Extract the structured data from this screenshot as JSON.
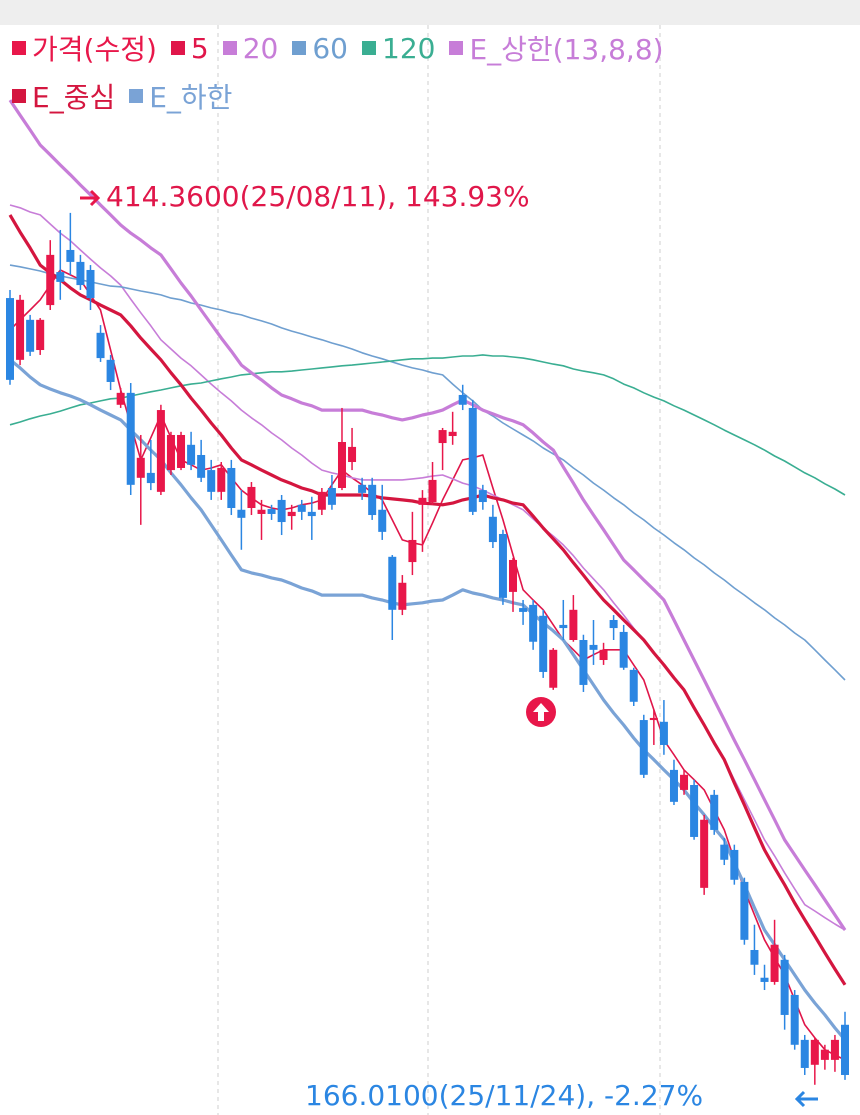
{
  "chart_data": {
    "type": "candlestick",
    "name": "가격(수정)",
    "up_color": "#e8174a",
    "down_color": "#2b86e2",
    "ylim": [
      157.4,
      475.0
    ],
    "annotations": [
      "414.3600(25/08/11), 143.93%",
      "166.0100(25/11/24), -2.27%"
    ],
    "ohlc": [
      [
        390.1,
        392.4,
        365.4,
        366.8
      ],
      [
        372.5,
        391.0,
        371.0,
        389.6
      ],
      [
        383.9,
        385.3,
        373.6,
        374.8
      ],
      [
        375.3,
        384.4,
        373.9,
        383.9
      ],
      [
        388.1,
        406.6,
        386.7,
        402.4
      ],
      [
        397.5,
        409.5,
        389.6,
        394.7
      ],
      [
        403.8,
        414.36,
        396.7,
        400.4
      ],
      [
        400.4,
        402.4,
        392.4,
        393.8
      ],
      [
        398.1,
        399.5,
        386.7,
        390.1
      ],
      [
        380.2,
        382.4,
        371.9,
        373.0
      ],
      [
        372.5,
        373.9,
        363.9,
        366.2
      ],
      [
        359.7,
        364.5,
        358.8,
        363.1
      ],
      [
        363.1,
        365.9,
        334.0,
        336.9
      ],
      [
        338.9,
        351.1,
        325.5,
        344.6
      ],
      [
        340.3,
        349.7,
        335.4,
        337.4
      ],
      [
        334.9,
        359.7,
        334.0,
        358.2
      ],
      [
        341.1,
        352.0,
        339.7,
        351.1
      ],
      [
        341.7,
        352.0,
        341.1,
        351.1
      ],
      [
        348.3,
        352.0,
        341.1,
        342.6
      ],
      [
        345.4,
        349.7,
        337.7,
        338.9
      ],
      [
        341.1,
        344.0,
        332.6,
        334.9
      ],
      [
        334.9,
        343.4,
        332.6,
        341.7
      ],
      [
        341.7,
        344.0,
        328.3,
        330.3
      ],
      [
        329.8,
        335.4,
        318.4,
        327.5
      ],
      [
        330.3,
        337.7,
        328.3,
        336.3
      ],
      [
        328.6,
        332.6,
        321.2,
        329.8
      ],
      [
        330.0,
        331.2,
        326.9,
        328.6
      ],
      [
        332.6,
        334.0,
        322.6,
        326.3
      ],
      [
        328.0,
        331.2,
        324.1,
        329.2
      ],
      [
        331.2,
        332.6,
        326.9,
        329.2
      ],
      [
        329.2,
        333.5,
        321.2,
        328.0
      ],
      [
        329.8,
        336.0,
        328.3,
        334.9
      ],
      [
        336.0,
        339.7,
        329.8,
        331.2
      ],
      [
        336.0,
        358.8,
        335.4,
        349.1
      ],
      [
        343.4,
        353.1,
        341.1,
        347.7
      ],
      [
        336.9,
        338.9,
        332.6,
        334.6
      ],
      [
        336.9,
        338.9,
        326.9,
        328.3
      ],
      [
        329.8,
        336.9,
        321.2,
        323.5
      ],
      [
        316.4,
        316.9,
        292.7,
        301.3
      ],
      [
        301.3,
        311.2,
        299.8,
        309.0
      ],
      [
        314.9,
        329.2,
        311.2,
        321.2
      ],
      [
        331.2,
        335.4,
        317.8,
        333.2
      ],
      [
        332.0,
        343.4,
        331.2,
        338.3
      ],
      [
        348.8,
        353.1,
        341.1,
        352.5
      ],
      [
        350.8,
        357.7,
        348.3,
        352.0
      ],
      [
        362.5,
        365.4,
        358.2,
        359.7
      ],
      [
        358.8,
        361.1,
        328.3,
        329.2
      ],
      [
        335.4,
        336.9,
        329.8,
        332.0
      ],
      [
        327.8,
        331.2,
        318.9,
        320.6
      ],
      [
        322.9,
        324.1,
        302.7,
        304.7
      ],
      [
        306.4,
        316.1,
        300.7,
        315.5
      ],
      [
        301.8,
        304.1,
        297.0,
        300.7
      ],
      [
        302.7,
        304.1,
        289.9,
        292.2
      ],
      [
        299.6,
        301.3,
        281.9,
        283.6
      ],
      [
        279.1,
        290.4,
        278.5,
        289.9
      ],
      [
        297.0,
        304.1,
        292.7,
        296.1
      ],
      [
        292.7,
        305.5,
        292.2,
        301.3
      ],
      [
        292.7,
        294.2,
        277.9,
        279.9
      ],
      [
        291.3,
        298.4,
        285.6,
        289.9
      ],
      [
        287.0,
        291.9,
        285.6,
        289.9
      ],
      [
        298.4,
        299.8,
        292.7,
        296.1
      ],
      [
        295.0,
        297.0,
        284.2,
        284.8
      ],
      [
        284.2,
        284.8,
        273.9,
        275.1
      ],
      [
        269.9,
        271.4,
        253.4,
        254.3
      ],
      [
        269.9,
        272.8,
        262.8,
        270.5
      ],
      [
        269.4,
        275.6,
        260.0,
        262.8
      ],
      [
        255.7,
        258.6,
        245.7,
        246.6
      ],
      [
        250.0,
        255.7,
        248.6,
        254.3
      ],
      [
        251.4,
        252.9,
        235.8,
        236.6
      ],
      [
        222.1,
        242.9,
        220.1,
        241.5
      ],
      [
        248.6,
        250.0,
        237.2,
        238.6
      ],
      [
        234.4,
        236.3,
        228.6,
        230.1
      ],
      [
        232.9,
        234.4,
        223.0,
        224.4
      ],
      [
        223.8,
        225.0,
        205.9,
        207.3
      ],
      [
        204.4,
        211.6,
        197.3,
        200.2
      ],
      [
        196.5,
        200.2,
        193.0,
        195.3
      ],
      [
        195.3,
        213.0,
        194.5,
        205.9
      ],
      [
        201.6,
        203.0,
        181.7,
        185.9
      ],
      [
        191.6,
        193.0,
        176.0,
        177.4
      ],
      [
        178.8,
        180.2,
        168.8,
        170.8
      ],
      [
        171.7,
        179.4,
        166.01,
        178.8
      ],
      [
        173.1,
        177.4,
        170.3,
        176.0
      ],
      [
        173.1,
        180.2,
        169.7,
        178.8
      ],
      [
        183.1,
        186.8,
        167.4,
        168.8
      ]
    ],
    "series": [
      {
        "name": "5",
        "color": "#e0164a",
        "values": [
          381.0,
          383.9,
          386.7,
          389.6,
          393.8,
          398.1,
          396.7,
          395.3,
          391.0,
          386.7,
          375.3,
          363.9,
          354.0,
          344.0,
          350.3,
          356.8,
          350.3,
          344.0,
          342.6,
          341.1,
          341.7,
          342.6,
          338.9,
          335.4,
          333.2,
          331.2,
          330.3,
          329.8,
          330.3,
          331.2,
          331.7,
          332.6,
          336.9,
          341.1,
          338.9,
          336.9,
          334.6,
          332.6,
          326.9,
          321.2,
          320.4,
          319.8,
          326.0,
          332.6,
          338.3,
          344.0,
          344.6,
          345.4,
          336.0,
          326.9,
          316.9,
          307.0,
          304.1,
          301.3,
          297.0,
          292.7,
          289.9,
          287.0,
          288.5,
          289.9,
          289.9,
          289.9,
          285.6,
          281.3,
          272.8,
          264.2,
          260.0,
          255.7,
          252.9,
          250.0,
          244.3,
          238.6,
          230.1,
          221.5,
          214.4,
          207.3,
          202.2,
          197.3,
          190.2,
          183.1,
          179.4,
          176.0,
          174.5,
          173.1
        ]
      },
      {
        "name": "20",
        "color": "#c77dd8",
        "values": [
          416.6,
          415.8,
          414.6,
          413.8,
          411.2,
          408.6,
          406.4,
          403.8,
          401.2,
          398.7,
          396.4,
          393.8,
          389.8,
          385.9,
          382.2,
          378.2,
          375.6,
          373.0,
          370.8,
          368.2,
          365.6,
          363.1,
          360.8,
          358.2,
          356.0,
          354.0,
          351.7,
          349.7,
          347.4,
          345.4,
          343.1,
          341.1,
          340.3,
          339.7,
          338.9,
          338.3,
          338.3,
          338.3,
          338.3,
          338.3,
          338.6,
          338.9,
          339.4,
          339.7,
          338.6,
          337.4,
          336.6,
          335.4,
          334.0,
          332.6,
          331.2,
          329.8,
          327.2,
          324.6,
          322.3,
          319.8,
          316.7,
          313.2,
          310.1,
          307.0,
          303.3,
          299.8,
          296.1,
          292.7,
          289.0,
          285.6,
          281.9,
          278.5,
          273.4,
          268.5,
          263.4,
          258.6,
          252.9,
          247.2,
          241.5,
          235.8,
          231.2,
          226.4,
          221.8,
          217.3,
          215.5,
          213.6,
          211.8,
          210.1
        ]
      },
      {
        "name": "60",
        "color": "#6f9fd0",
        "values": [
          399.5,
          399.0,
          398.4,
          397.8,
          397.0,
          396.4,
          395.8,
          395.3,
          394.7,
          394.1,
          393.5,
          393.3,
          392.7,
          392.1,
          391.6,
          391.0,
          390.1,
          389.6,
          388.7,
          388.1,
          387.3,
          386.7,
          385.9,
          385.3,
          384.4,
          383.6,
          382.7,
          381.6,
          380.7,
          379.9,
          379.0,
          378.2,
          377.3,
          376.5,
          375.6,
          374.5,
          373.6,
          372.8,
          371.9,
          371.0,
          370.2,
          369.6,
          368.8,
          368.2,
          365.6,
          363.1,
          360.8,
          358.2,
          356.5,
          354.5,
          352.8,
          351.1,
          349.4,
          347.4,
          345.7,
          344.0,
          341.7,
          339.7,
          337.4,
          335.4,
          333.2,
          331.2,
          328.9,
          326.9,
          324.6,
          322.6,
          320.4,
          318.4,
          316.1,
          314.1,
          311.8,
          309.8,
          307.5,
          305.5,
          303.3,
          301.3,
          299.0,
          297.0,
          294.7,
          292.7,
          289.9,
          287.0,
          284.2,
          281.3
        ]
      },
      {
        "name": "120",
        "color": "#3aae92",
        "values": [
          354.0,
          354.8,
          355.7,
          356.5,
          357.1,
          357.9,
          358.8,
          359.7,
          360.2,
          360.8,
          361.4,
          361.6,
          362.2,
          362.8,
          363.4,
          363.9,
          364.5,
          365.1,
          365.6,
          365.9,
          366.5,
          367.1,
          367.6,
          368.2,
          368.5,
          368.8,
          369.1,
          369.1,
          369.3,
          369.6,
          369.9,
          370.2,
          370.5,
          370.8,
          371.0,
          371.3,
          371.6,
          371.9,
          372.2,
          372.5,
          372.8,
          372.8,
          373.0,
          373.0,
          373.3,
          373.6,
          373.6,
          373.9,
          373.6,
          373.6,
          373.3,
          373.0,
          372.5,
          371.9,
          371.3,
          370.8,
          369.9,
          369.3,
          368.8,
          368.2,
          367.1,
          365.6,
          364.5,
          363.1,
          361.9,
          360.8,
          359.4,
          358.2,
          356.8,
          355.4,
          354.0,
          352.5,
          351.1,
          349.7,
          348.3,
          346.8,
          345.1,
          343.7,
          342.0,
          340.3,
          338.9,
          337.2,
          335.7,
          334.0
        ]
      },
      {
        "name": "E_상한(13,8,8)",
        "color": "#c77dd8",
        "values": [
          446.5,
          442.2,
          438.0,
          433.7,
          430.9,
          428.0,
          425.2,
          422.3,
          419.5,
          416.6,
          413.8,
          410.9,
          408.6,
          406.6,
          404.4,
          402.4,
          398.4,
          394.4,
          390.7,
          386.7,
          382.7,
          378.7,
          375.0,
          371.0,
          368.8,
          366.8,
          364.5,
          362.5,
          361.4,
          360.2,
          359.4,
          358.2,
          358.2,
          358.2,
          358.2,
          358.2,
          357.4,
          356.8,
          356.0,
          355.4,
          356.0,
          356.8,
          357.4,
          358.2,
          359.7,
          361.1,
          359.7,
          358.2,
          357.1,
          356.0,
          355.1,
          354.0,
          351.7,
          349.1,
          346.8,
          342.0,
          337.4,
          332.6,
          328.3,
          324.1,
          319.8,
          315.5,
          312.7,
          309.8,
          307.0,
          304.1,
          298.4,
          292.7,
          287.0,
          281.3,
          275.6,
          269.9,
          264.2,
          258.6,
          252.9,
          247.2,
          241.5,
          235.8,
          231.5,
          227.2,
          223.0,
          218.7,
          214.4,
          210.1
        ]
      },
      {
        "name": "E_중심",
        "color": "#d4163f",
        "values": [
          413.8,
          408.9,
          404.4,
          399.5,
          397.3,
          395.3,
          393.0,
          391.0,
          389.6,
          388.1,
          386.7,
          385.3,
          382.2,
          378.7,
          375.6,
          372.5,
          368.8,
          365.4,
          361.6,
          358.2,
          354.5,
          351.1,
          347.4,
          344.0,
          342.6,
          341.1,
          339.7,
          338.3,
          337.2,
          336.0,
          335.2,
          334.0,
          334.0,
          334.0,
          334.0,
          334.0,
          333.7,
          333.2,
          332.9,
          332.6,
          332.3,
          331.7,
          331.5,
          331.2,
          331.7,
          332.6,
          333.2,
          334.0,
          333.2,
          332.6,
          331.7,
          331.2,
          328.0,
          324.6,
          321.5,
          318.4,
          314.7,
          311.2,
          307.5,
          304.1,
          301.3,
          298.4,
          295.6,
          292.7,
          289.0,
          285.6,
          281.9,
          278.5,
          273.4,
          268.5,
          263.4,
          258.6,
          252.0,
          245.7,
          239.2,
          232.9,
          227.8,
          223.0,
          217.8,
          213.0,
          208.4,
          203.6,
          199.0,
          194.5
        ]
      },
      {
        "name": "E_하한",
        "color": "#7aa3d6",
        "values": [
          372.5,
          370.2,
          367.6,
          365.4,
          364.2,
          363.1,
          362.2,
          361.1,
          359.7,
          358.2,
          356.8,
          355.4,
          352.5,
          349.7,
          346.8,
          344.0,
          340.3,
          336.9,
          333.2,
          329.8,
          325.5,
          321.2,
          316.9,
          312.7,
          311.8,
          311.2,
          310.4,
          309.8,
          308.7,
          307.5,
          306.7,
          305.5,
          305.5,
          305.5,
          305.5,
          305.5,
          304.7,
          304.1,
          303.3,
          302.7,
          303.0,
          303.3,
          303.8,
          304.1,
          305.5,
          307.0,
          306.1,
          305.5,
          304.7,
          304.1,
          303.3,
          302.7,
          300.1,
          297.6,
          295.3,
          292.7,
          288.5,
          284.2,
          279.9,
          275.6,
          271.9,
          268.5,
          264.8,
          261.4,
          258.6,
          255.7,
          252.9,
          250.0,
          246.3,
          242.9,
          239.2,
          235.8,
          229.2,
          223.0,
          216.4,
          210.1,
          205.9,
          201.6,
          197.3,
          193.0,
          189.3,
          185.9,
          182.2,
          178.8
        ]
      }
    ]
  }
}
